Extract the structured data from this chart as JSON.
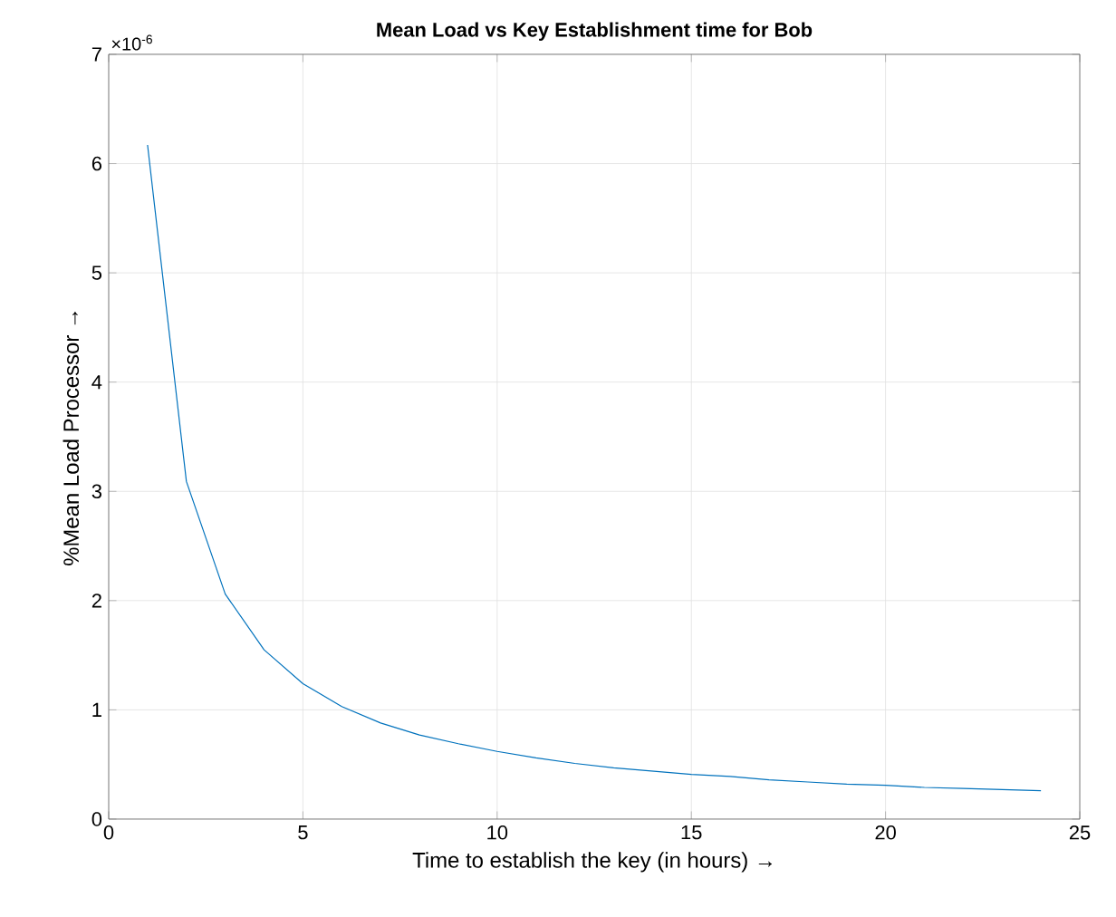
{
  "chart_data": {
    "type": "line",
    "title": "Mean Load vs Key Establishment time for Bob",
    "xlabel": "Time to establish the key (in hours) →",
    "ylabel": "%Mean Load Processor →",
    "annotations": [
      "×10$^{-6}$"
    ],
    "x": [
      1,
      2,
      3,
      4,
      5,
      6,
      7,
      8,
      9,
      10,
      11,
      12,
      13,
      14,
      15,
      16,
      17,
      18,
      19,
      20,
      21,
      22,
      23,
      24
    ],
    "series": [
      {
        "color": "#0072bd",
        "values": [
          6.17,
          3.09,
          2.06,
          1.55,
          1.24,
          1.03,
          0.88,
          0.77,
          0.69,
          0.62,
          0.56,
          0.51,
          0.47,
          0.44,
          0.41,
          0.39,
          0.36,
          0.34,
          0.32,
          0.31,
          0.29,
          0.28,
          0.27,
          0.26
        ]
      }
    ],
    "xlim": [
      0,
      25
    ],
    "xticks": [
      0,
      5,
      10,
      15,
      20,
      25
    ],
    "ylim": [
      0,
      7
    ],
    "yticks": [
      0,
      1,
      2,
      3,
      4,
      5,
      6,
      7
    ],
    "grid": true,
    "marker": "none",
    "line_style": "solid"
  }
}
